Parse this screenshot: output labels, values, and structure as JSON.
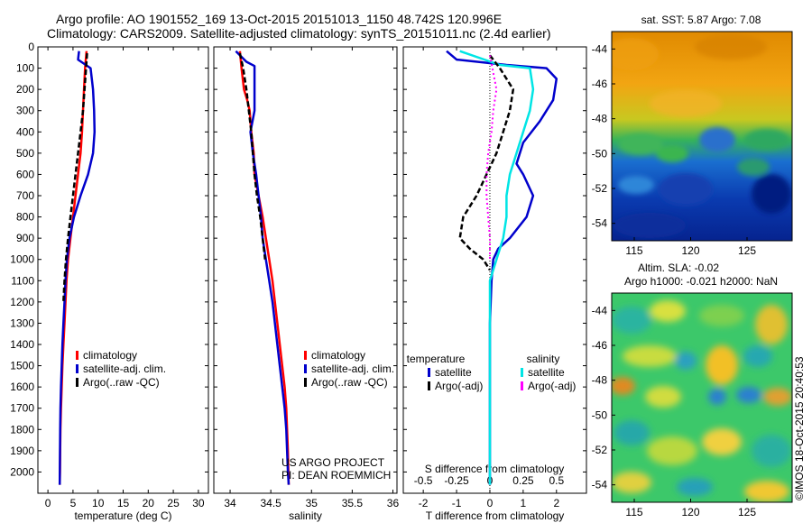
{
  "header": {
    "line1": "Argo profile: AO 1901552_169 13-Oct-2015 20151013_1150 48.742S 120.996E",
    "line2": "Climatology: CARS2009. Satellite-adjusted climatology: synTS_20151011.nc (2.4d earlier)"
  },
  "credit": {
    "line1": "US ARGO PROJECT",
    "line2": "PI: DEAN ROEMMICH"
  },
  "colors": {
    "climatology": "#ff0000",
    "satellite": "#0000cc",
    "argo": "#000000",
    "satellite_s": "#00e5e5",
    "argo_s": "#ff00ff"
  },
  "chart_data": [
    {
      "type": "line",
      "xlabel": "temperature (deg C)",
      "xticks": [
        "0",
        "5",
        "10",
        "15",
        "20",
        "25",
        "30"
      ],
      "xlim": [
        -2,
        32
      ],
      "ylim": [
        2100,
        0
      ],
      "yticks": [
        0,
        100,
        200,
        300,
        400,
        500,
        600,
        700,
        800,
        900,
        1000,
        1100,
        1200,
        1300,
        1400,
        1500,
        1600,
        1700,
        1800,
        1900,
        2000
      ],
      "legend": [
        {
          "label": "climatology",
          "color": "#ff0000"
        },
        {
          "label": "satellite-adj. clim.",
          "color": "#0000cc"
        },
        {
          "label": "Argo(..raw -QC)",
          "color": "#000000"
        }
      ],
      "series": [
        {
          "name": "climatology",
          "color": "#ff0000",
          "style": "solid",
          "width": 2.5,
          "x": [
            7.7,
            7.4,
            7.2,
            7.0,
            6.8,
            6.5,
            6.0,
            5.5,
            5.0,
            4.5,
            4.0,
            3.7,
            3.5,
            3.3,
            3.1,
            2.9,
            2.75,
            2.6,
            2.5,
            2.45,
            2.4,
            2.35
          ],
          "y": [
            20,
            100,
            200,
            300,
            400,
            500,
            600,
            700,
            800,
            900,
            1000,
            1100,
            1200,
            1300,
            1400,
            1500,
            1600,
            1700,
            1800,
            1900,
            2000,
            2060
          ]
        },
        {
          "name": "satellite-adj. clim.",
          "color": "#0000cc",
          "style": "solid",
          "width": 2.5,
          "x": [
            6.2,
            6.0,
            8.5,
            9.0,
            9.2,
            9.3,
            9.0,
            8.0,
            6.5,
            5.2,
            4.3,
            3.8,
            3.5,
            3.3,
            3.1,
            2.9,
            2.75,
            2.6,
            2.5,
            2.45,
            2.4,
            2.35
          ],
          "y": [
            20,
            60,
            100,
            200,
            300,
            400,
            500,
            600,
            700,
            800,
            900,
            1000,
            1100,
            1200,
            1300,
            1400,
            1500,
            1600,
            1700,
            1800,
            1900,
            2060
          ]
        },
        {
          "name": "Argo(..raw -QC)",
          "color": "#000000",
          "style": "dashed",
          "width": 2.5,
          "x": [
            7.8,
            7.6,
            7.3,
            7.0,
            6.5,
            6.0,
            5.5,
            5.0,
            4.5,
            4.0,
            3.6,
            3.3,
            3.1
          ],
          "y": [
            30,
            100,
            200,
            300,
            400,
            500,
            600,
            700,
            800,
            900,
            1000,
            1100,
            1200
          ]
        }
      ]
    },
    {
      "type": "line",
      "xlabel": "salinity",
      "xticks": [
        "34",
        "34.5",
        "35",
        "35.5",
        "36"
      ],
      "xlim": [
        33.8,
        36.05
      ],
      "ylim": [
        2100,
        0
      ],
      "legend": [
        {
          "label": "climatology",
          "color": "#ff0000"
        },
        {
          "label": "satellite-adj. clim.",
          "color": "#0000cc"
        },
        {
          "label": "Argo(..raw -QC)",
          "color": "#000000"
        }
      ],
      "series": [
        {
          "name": "climatology",
          "color": "#ff0000",
          "style": "solid",
          "width": 2.5,
          "x": [
            34.12,
            34.14,
            34.17,
            34.21,
            34.24,
            34.26,
            34.29,
            34.3,
            34.35,
            34.4,
            34.44,
            34.48,
            34.52,
            34.55,
            34.58,
            34.61,
            34.64,
            34.67,
            34.69,
            34.7,
            34.71,
            34.72
          ],
          "y": [
            20,
            100,
            200,
            250,
            300,
            400,
            500,
            600,
            700,
            800,
            900,
            1000,
            1100,
            1200,
            1300,
            1400,
            1500,
            1600,
            1700,
            1800,
            1900,
            2060
          ]
        },
        {
          "name": "satellite-adj. clim.",
          "color": "#0000cc",
          "style": "solid",
          "width": 2.5,
          "x": [
            34.07,
            34.2,
            34.3,
            34.3,
            34.25,
            34.28,
            34.32,
            34.35,
            34.38,
            34.4,
            34.44,
            34.48,
            34.52,
            34.55,
            34.58,
            34.61,
            34.64,
            34.67,
            34.69,
            34.7,
            34.71,
            34.72
          ],
          "y": [
            20,
            70,
            90,
            300,
            400,
            500,
            600,
            700,
            800,
            900,
            1000,
            1100,
            1200,
            1300,
            1400,
            1500,
            1600,
            1700,
            1800,
            1900,
            2000,
            2060
          ]
        },
        {
          "name": "Argo(..raw -QC)",
          "color": "#000000",
          "style": "dashed",
          "width": 2.5,
          "x": [
            34.12,
            34.16,
            34.2,
            34.23,
            34.26,
            34.28,
            34.3,
            34.33,
            34.37,
            34.4,
            34.43
          ],
          "y": [
            30,
            100,
            200,
            300,
            400,
            500,
            600,
            700,
            800,
            900,
            1000
          ]
        }
      ]
    },
    {
      "type": "line",
      "xlabel": "T difference from climatology",
      "top_label": "S difference from climatology",
      "xticks": [
        "-2",
        "-1",
        "0",
        "1",
        "2"
      ],
      "top_ticks": [
        "-0.5",
        "-0.25",
        "0",
        "0.25",
        "0.5"
      ],
      "xlim": [
        -2.6,
        2.9
      ],
      "ylim": [
        2100,
        0
      ],
      "legend_left": {
        "title": "temperature",
        "items": [
          {
            "label": "satellite",
            "color": "#0000cc"
          },
          {
            "label": "Argo(-adj)",
            "color": "#000000"
          }
        ]
      },
      "legend_right": {
        "title": "salinity",
        "items": [
          {
            "label": "satellite",
            "color": "#00e5e5"
          },
          {
            "label": "Argo(-adj)",
            "color": "#ff00ff"
          }
        ]
      },
      "series": [
        {
          "name": "satellite",
          "color": "#0000cc",
          "style": "solid",
          "width": 2.5,
          "x": [
            -1.3,
            -1.0,
            0.5,
            1.7,
            2.0,
            1.9,
            1.5,
            1.0,
            0.8,
            1.0,
            1.3,
            1.1,
            0.6,
            0.25,
            0.1,
            0.05,
            0,
            0,
            0,
            0
          ],
          "y": [
            20,
            60,
            85,
            100,
            150,
            250,
            350,
            450,
            550,
            600,
            700,
            800,
            900,
            950,
            1000,
            1100,
            1300,
            1500,
            1800,
            2060
          ]
        },
        {
          "name": "satellite",
          "color": "#00e5e5",
          "style": "solid",
          "width": 2.5,
          "x": [
            -0.9,
            0.3,
            1.2,
            1.3,
            1.2,
            1.0,
            0.8,
            0.6,
            0.5,
            0.5,
            0.4,
            0.2,
            0.0,
            0.0,
            0.0
          ],
          "y": [
            20,
            85,
            100,
            200,
            300,
            400,
            500,
            600,
            700,
            800,
            900,
            1000,
            1100,
            1500,
            2060
          ]
        },
        {
          "name": "Argo(-adj)",
          "color": "#000000",
          "style": "dashed",
          "width": 2.5,
          "x": [
            0,
            0.3,
            0.7,
            0.6,
            0.4,
            0.2,
            -0.1,
            -0.4,
            -0.6,
            -0.8,
            -0.9,
            -0.6,
            -0.2,
            0
          ],
          "y": [
            40,
            100,
            200,
            300,
            400,
            500,
            600,
            700,
            750,
            800,
            900,
            950,
            1000,
            1050
          ]
        },
        {
          "name": "Argo(-adj)",
          "color": "#ff00ff",
          "style": "dotted",
          "width": 2,
          "x": [
            0,
            0.2,
            0.1,
            0.05,
            -0.05,
            -0.1,
            -0.1,
            -0.05,
            0,
            0
          ],
          "y": [
            40,
            200,
            300,
            400,
            500,
            600,
            700,
            800,
            900,
            1000
          ]
        }
      ]
    },
    {
      "type": "heatmap",
      "title": "sat. SST: 5.87 Argo: 7.08",
      "xticks": [
        "115",
        "120",
        "125"
      ],
      "yticks": [
        "-44",
        "-46",
        "-48",
        "-50",
        "-52",
        "-54"
      ],
      "xlim": [
        113,
        129
      ],
      "ylim": [
        -55,
        -43
      ]
    },
    {
      "type": "heatmap",
      "title_line1": "Altim. SLA: -0.02",
      "title_line2": "Argo h1000: -0.021 h2000: NaN",
      "xticks": [
        "115",
        "120",
        "125"
      ],
      "yticks": [
        "-44",
        "-46",
        "-48",
        "-50",
        "-52",
        "-54"
      ],
      "xlim": [
        113,
        129
      ],
      "ylim": [
        -55,
        -43
      ]
    }
  ],
  "footer": {
    "watermark": "©IMOS 18-Oct-2015 20:40:53"
  }
}
